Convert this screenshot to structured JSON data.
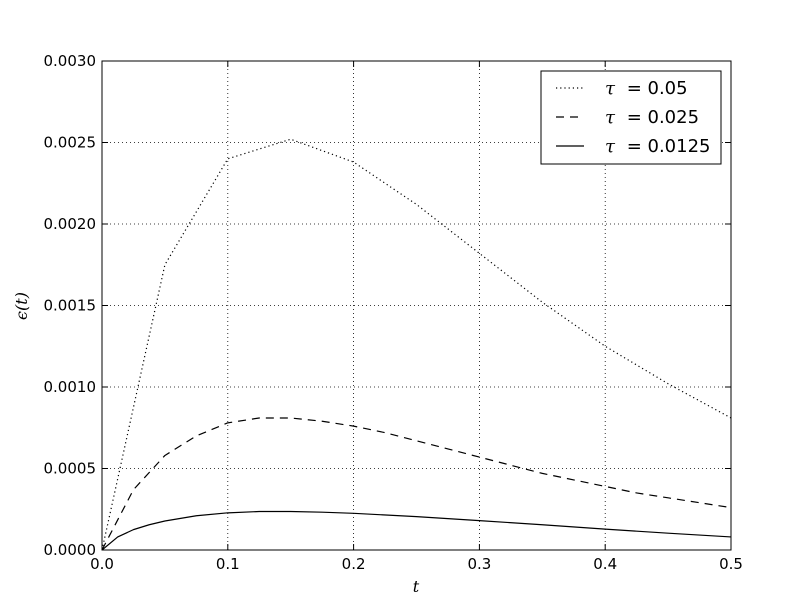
{
  "chart_data": {
    "type": "line",
    "title": "",
    "xlabel": "t",
    "ylabel": "ϵ(t)",
    "xlim": [
      0.0,
      0.5
    ],
    "ylim": [
      0.0,
      0.003
    ],
    "x_ticks": [
      "0.0",
      "0.1",
      "0.2",
      "0.3",
      "0.4",
      "0.5"
    ],
    "y_ticks": [
      "0.0000",
      "0.0005",
      "0.0010",
      "0.0015",
      "0.0020",
      "0.0025",
      "0.0030"
    ],
    "grid": true,
    "legend_position": "top-right",
    "series": [
      {
        "name": "τ = 0.05",
        "legend_symbol": "τ",
        "legend_value": "= 0.05",
        "style": "dotted",
        "color": "#000000",
        "x": [
          0.0,
          0.05,
          0.1,
          0.15,
          0.2,
          0.25,
          0.3,
          0.35,
          0.4,
          0.45,
          0.5
        ],
        "y": [
          0.0,
          0.00175,
          0.0024,
          0.00252,
          0.00238,
          0.00212,
          0.00182,
          0.00152,
          0.00125,
          0.00102,
          0.00081
        ]
      },
      {
        "name": "τ = 0.025",
        "legend_symbol": "τ",
        "legend_value": "= 0.025",
        "style": "dashed",
        "color": "#000000",
        "x": [
          0.0,
          0.025,
          0.05,
          0.075,
          0.1,
          0.125,
          0.15,
          0.175,
          0.2,
          0.225,
          0.25,
          0.275,
          0.3,
          0.325,
          0.35,
          0.375,
          0.4,
          0.425,
          0.45,
          0.475,
          0.5
        ],
        "y": [
          0.0,
          0.00037,
          0.00058,
          0.0007,
          0.00078,
          0.00081,
          0.00081,
          0.00079,
          0.00076,
          0.00072,
          0.00067,
          0.00062,
          0.00057,
          0.00052,
          0.00047,
          0.00043,
          0.00039,
          0.00035,
          0.00032,
          0.00029,
          0.00026
        ]
      },
      {
        "name": "τ = 0.0125",
        "legend_symbol": "τ",
        "legend_value": "= 0.0125",
        "style": "solid",
        "color": "#000000",
        "x": [
          0.0,
          0.0125,
          0.025,
          0.0375,
          0.05,
          0.075,
          0.1,
          0.125,
          0.15,
          0.175,
          0.2,
          0.25,
          0.3,
          0.35,
          0.4,
          0.45,
          0.5
        ],
        "y": [
          0.0,
          8e-05,
          0.000125,
          0.000155,
          0.000178,
          0.00021,
          0.000228,
          0.000236,
          0.000236,
          0.000232,
          0.000225,
          0.000205,
          0.00018,
          0.000155,
          0.000128,
          0.000103,
          8e-05
        ]
      }
    ]
  }
}
